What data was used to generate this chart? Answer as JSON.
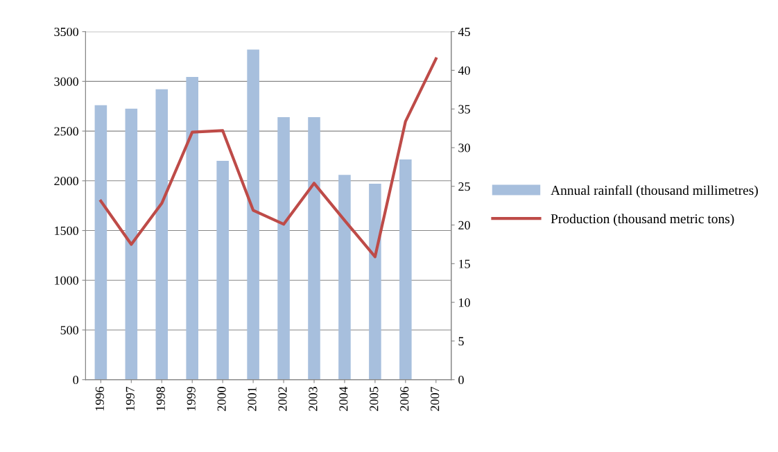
{
  "chart_data": {
    "type": "bar",
    "categories": [
      "1996",
      "1997",
      "1998",
      "1999",
      "2000",
      "2001",
      "2002",
      "2003",
      "2004",
      "2005",
      "2006",
      "2007"
    ],
    "series": [
      {
        "name": "Annual rainfall (thousand millimetres)",
        "color": "#a7bfdd",
        "values": [
          2760,
          2725,
          2920,
          3045,
          2200,
          3320,
          2640,
          2640,
          2060,
          1970,
          2215,
          null
        ]
      },
      {
        "name": "Production (thousand metric tons)",
        "type": "line",
        "axis": "y2",
        "color": "#be4b48",
        "values": [
          23.1,
          17.5,
          22.8,
          32.0,
          32.2,
          21.9,
          20.1,
          25.4,
          20.6,
          15.9,
          33.4,
          41.5
        ]
      }
    ],
    "ylim": [
      0,
      3500
    ],
    "yticks": [
      0,
      500,
      1000,
      1500,
      2000,
      2500,
      3000,
      3500
    ],
    "y2lim": [
      0,
      45
    ],
    "y2ticks": [
      0,
      5,
      10,
      15,
      20,
      25,
      30,
      35,
      40,
      45
    ],
    "grid": "y",
    "legend": "right",
    "marker": "none",
    "line_style": "solid"
  }
}
